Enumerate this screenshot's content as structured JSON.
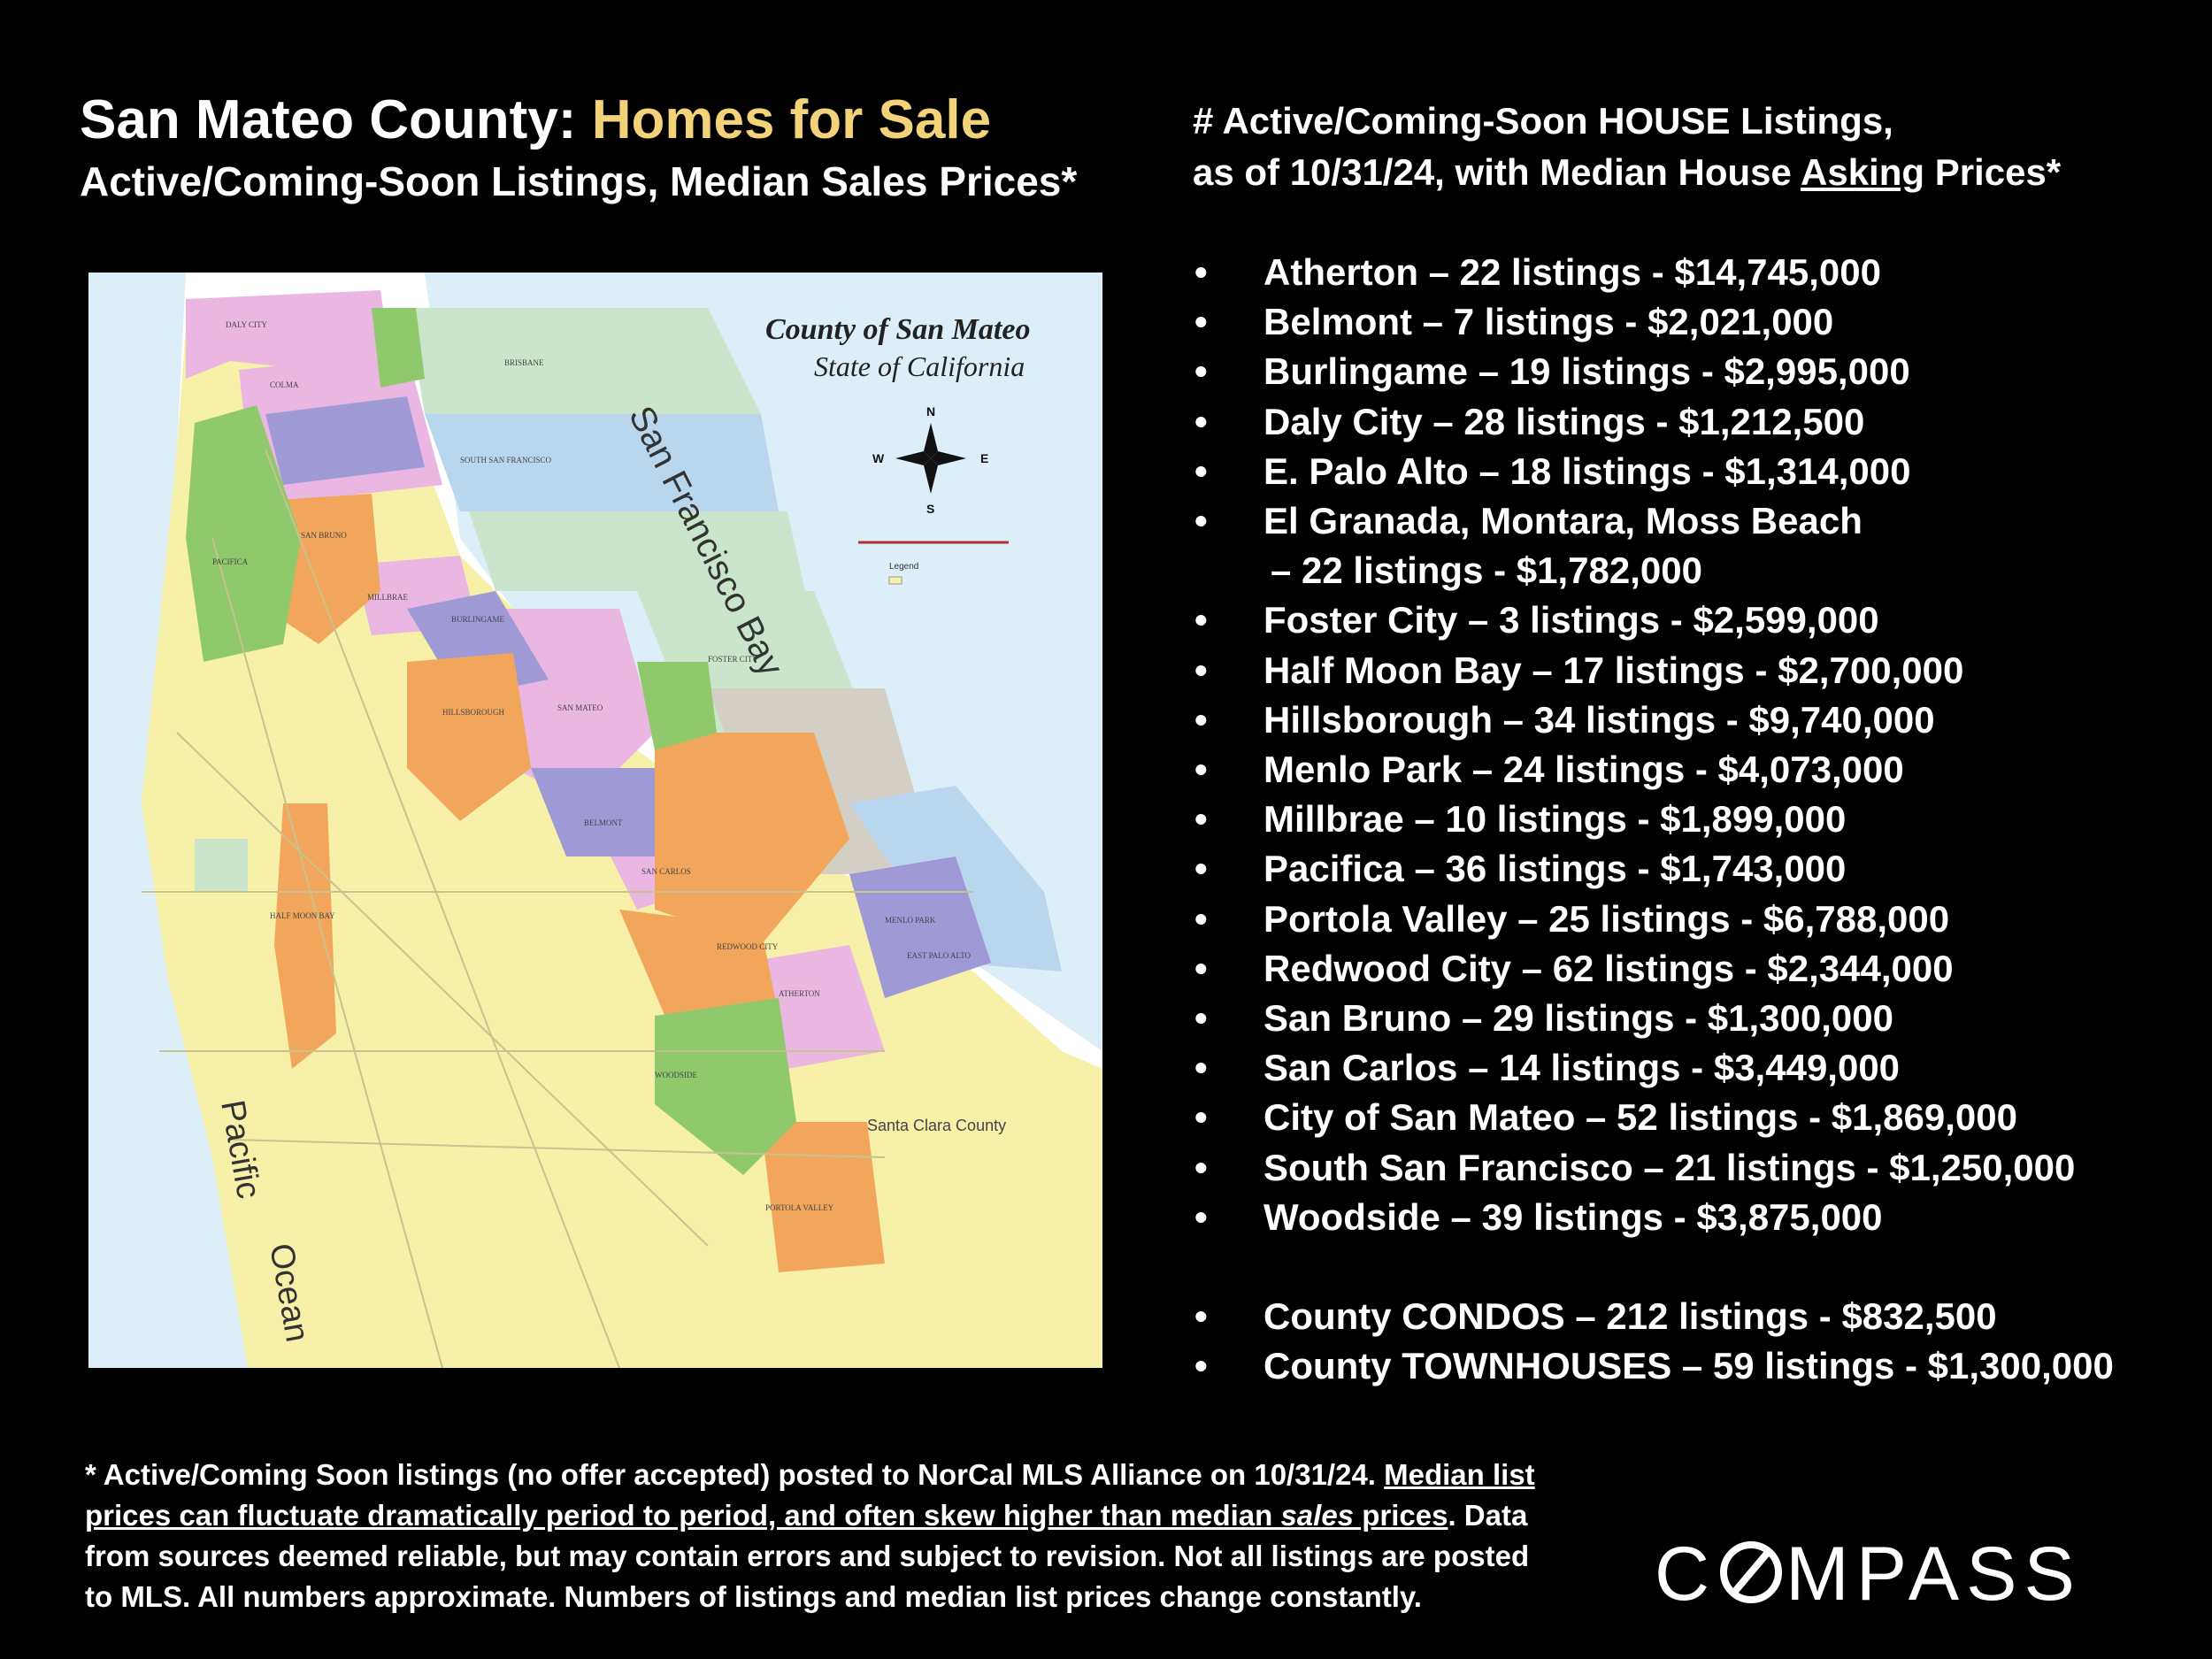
{
  "title": {
    "prefix": "San Mateo County: ",
    "accent": "Homes for Sale"
  },
  "subtitle": "Active/Coming-Soon Listings, Median Sales Prices*",
  "right_heading": {
    "line1": "# Active/Coming-Soon HOUSE Listings,",
    "line2_prefix": "as of 10/31/24, with Median House ",
    "line2_underlined": "Asking",
    "line2_suffix": " Prices*"
  },
  "listings": [
    "Atherton –  22 listings - $14,745,000",
    "Belmont –  7 listings - $2,021,000",
    "Burlingame –  19 listings - $2,995,000",
    "Daly City –  28 listings - $1,212,500",
    "E. Palo Alto –  18 listings - $1,314,000"
  ],
  "listing_multiline": {
    "line1": "El Granada, Montara, Moss Beach",
    "line2": "–  22 listings - $1,782,000"
  },
  "listings2": [
    "Foster City –  3 listings - $2,599,000",
    "Half Moon Bay –  17 listings - $2,700,000",
    "Hillsborough –  34 listings - $9,740,000",
    "Menlo Park –  24 listings - $4,073,000",
    "Millbrae –  10 listings - $1,899,000",
    "Pacifica –  36 listings - $1,743,000",
    "Portola Valley –  25 listings - $6,788,000",
    "Redwood City –  62 listings - $2,344,000",
    "San Bruno –  29 listings - $1,300,000",
    "San Carlos –  14 listings - $3,449,000",
    "City of San Mateo –  52 listings - $1,869,000",
    "South San Francisco –  21 listings - $1,250,000",
    "Woodside –  39 listings - $3,875,000"
  ],
  "county_listings": [
    "County CONDOS –  212 listings - $832,500",
    "County TOWNHOUSES –  59 listings - $1,300,000"
  ],
  "map": {
    "title1": "County of San Mateo",
    "title2": "State of California",
    "bay_label": "San Francisco Bay",
    "ocean_label1": "Pacific",
    "ocean_label2": "Ocean",
    "santa_clara": "Santa Clara County",
    "legend": "Legend",
    "compass": {
      "n": "N",
      "s": "S",
      "e": "E",
      "w": "W"
    },
    "city_labels": [
      "DALY CITY",
      "COLMA",
      "BRISBANE",
      "SOUTH SAN FRANCISCO",
      "SAN BRUNO",
      "PACIFICA",
      "MILLBRAE",
      "BURLINGAME",
      "FOSTER CITY",
      "HILLSBOROUGH",
      "SAN MATEO",
      "BELMONT",
      "SAN CARLOS",
      "REDWOOD CITY",
      "MENLO PARK",
      "EAST PALO ALTO",
      "ATHERTON",
      "HALF MOON BAY",
      "WOODSIDE",
      "PORTOLA VALLEY"
    ],
    "colors": {
      "water": "#dceef8",
      "unincorporated": "#f6f0a8",
      "pink": "#eab7e3",
      "purple": "#9f9ad6",
      "orange": "#f2a65c",
      "green": "#8fc96c",
      "blue": "#b9d6ef",
      "mint": "#c9e6cc",
      "gray": "#d4cfc4"
    }
  },
  "footnote": {
    "part1": "* Active/Coming Soon listings (no offer accepted) posted to NorCal MLS Alliance on 10/31/24.  ",
    "underlined": "Median list prices can fluctuate dramatically period to period, and often skew higher than median ",
    "underlined_italic": "sales",
    "underlined_end": " prices",
    "part2": ". Data from sources deemed reliable, but may contain errors and subject to revision.  Not all listings are posted to MLS. All numbers approximate. Numbers of listings and median list prices change constantly."
  },
  "logo": {
    "text_before": "C",
    "text_after": "MPASS"
  }
}
